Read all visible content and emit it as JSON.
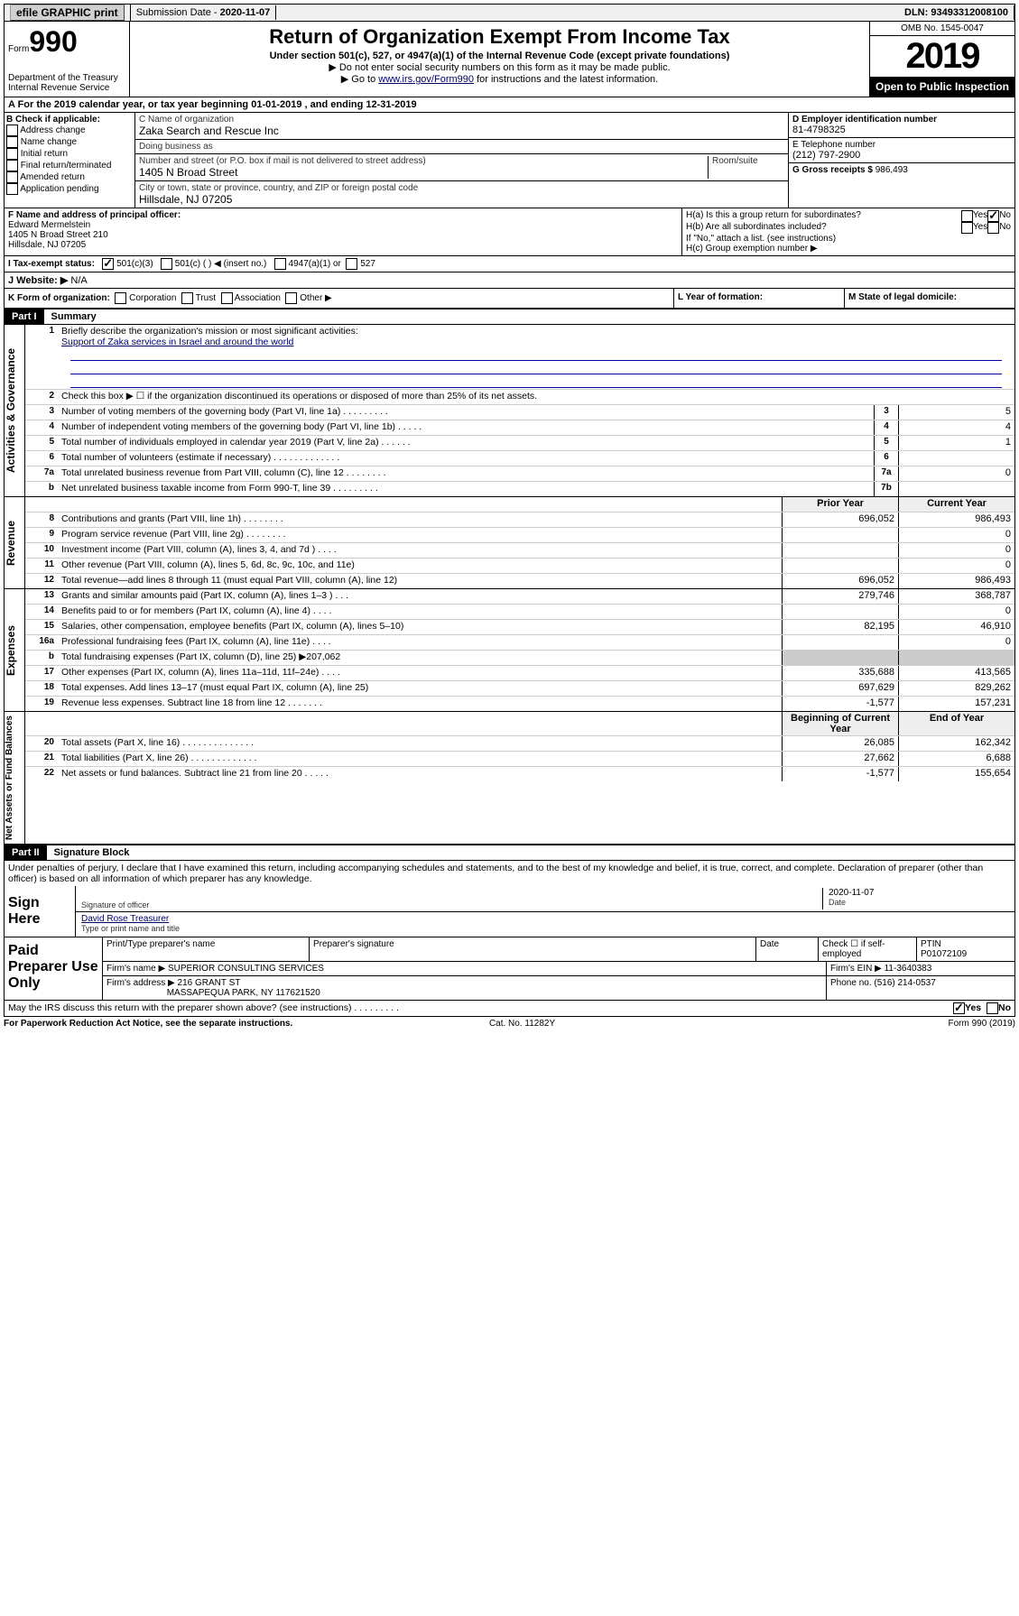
{
  "topbar": {
    "efile": "efile GRAPHIC print",
    "subdate_label": "Submission Date - ",
    "subdate": "2020-11-07",
    "dln_label": "DLN: ",
    "dln": "93493312008100"
  },
  "header": {
    "form_label": "Form",
    "form_num": "990",
    "dept1": "Department of the Treasury",
    "dept2": "Internal Revenue Service",
    "title": "Return of Organization Exempt From Income Tax",
    "sub": "Under section 501(c), 527, or 4947(a)(1) of the Internal Revenue Code (except private foundations)",
    "note1": "▶ Do not enter social security numbers on this form as it may be made public.",
    "note2a": "▶ Go to ",
    "note2link": "www.irs.gov/Form990",
    "note2b": " for instructions and the latest information.",
    "omb": "OMB No. 1545-0047",
    "year": "2019",
    "open": "Open to Public Inspection"
  },
  "period": {
    "text_a": "A For the 2019 calendar year, or tax year beginning ",
    "begin": "01-01-2019",
    "text_b": " , and ending ",
    "end": "12-31-2019"
  },
  "colB": {
    "title": "B Check if applicable:",
    "opts": [
      "Address change",
      "Name change",
      "Initial return",
      "Final return/terminated",
      "Amended return",
      "Application pending"
    ]
  },
  "colC": {
    "name_label": "C Name of organization",
    "name": "Zaka Search and Rescue Inc",
    "dba_label": "Doing business as",
    "dba": "",
    "addr_label": "Number and street (or P.O. box if mail is not delivered to street address)",
    "room_label": "Room/suite",
    "addr": "1405 N Broad Street",
    "city_label": "City or town, state or province, country, and ZIP or foreign postal code",
    "city": "Hillsdale, NJ  07205"
  },
  "colD": {
    "ein_label": "D Employer identification number",
    "ein": "81-4798325",
    "tel_label": "E Telephone number",
    "tel": "(212) 797-2900",
    "gross_label": "G Gross receipts $ ",
    "gross": "986,493"
  },
  "rowF": {
    "f_label": "F  Name and address of principal officer:",
    "f_name": "Edward Mermelstein",
    "f_addr1": "1405 N Broad Street 210",
    "f_addr2": "Hillsdale, NJ  07205",
    "ha": "H(a)  Is this a group return for subordinates?",
    "hb": "H(b)  Are all subordinates included?",
    "hb_note": "If \"No,\" attach a list. (see instructions)",
    "hc": "H(c)  Group exemption number ▶",
    "yes": "Yes",
    "no": "No"
  },
  "rowI": {
    "label": "I    Tax-exempt status:",
    "opt1": "501(c)(3)",
    "opt2": "501(c) (   ) ◀ (insert no.)",
    "opt3": "4947(a)(1) or",
    "opt4": "527"
  },
  "rowJ": {
    "label": "J   Website: ▶",
    "value": "N/A"
  },
  "rowK": {
    "k": "K Form of organization:",
    "kopts": [
      "Corporation",
      "Trust",
      "Association",
      "Other ▶"
    ],
    "l": "L Year of formation:",
    "l_val": "",
    "m": "M State of legal domicile:",
    "m_val": ""
  },
  "part1": {
    "label": "Part I",
    "title": "Summary",
    "sections": {
      "governance": {
        "tab": "Activities & Governance",
        "line1_label": "Briefly describe the organization's mission or most significant activities:",
        "line1_value": "Support of Zaka services in Israel and around the world",
        "line2": "Check this box ▶ ☐  if the organization discontinued its operations or disposed of more than 25% of its net assets.",
        "rows": [
          {
            "n": "3",
            "t": "Number of voting members of the governing body (Part VI, line 1a)   .    .    .    .    .    .    .    .    .",
            "box": "3",
            "v": "5"
          },
          {
            "n": "4",
            "t": "Number of independent voting members of the governing body (Part VI, line 1b)    .    .    .    .    .",
            "box": "4",
            "v": "4"
          },
          {
            "n": "5",
            "t": "Total number of individuals employed in calendar year 2019 (Part V, line 2a)    .    .    .    .    .    .",
            "box": "5",
            "v": "1"
          },
          {
            "n": "6",
            "t": "Total number of volunteers (estimate if necessary)    .    .    .    .    .    .    .    .    .    .    .    .    .",
            "box": "6",
            "v": ""
          },
          {
            "n": "7a",
            "t": "Total unrelated business revenue from Part VIII, column (C), line 12    .    .    .    .    .    .    .    .",
            "box": "7a",
            "v": "0"
          },
          {
            "n": "b",
            "t": "Net unrelated business taxable income from Form 990-T, line 39    .    .    .    .    .    .    .    .    .",
            "box": "7b",
            "v": ""
          }
        ]
      },
      "revenue": {
        "tab": "Revenue",
        "hdr_prior": "Prior Year",
        "hdr_curr": "Current Year",
        "rows": [
          {
            "n": "8",
            "t": "Contributions and grants (Part VIII, line 1h)    .    .    .    .    .    .    .    .",
            "p": "696,052",
            "c": "986,493"
          },
          {
            "n": "9",
            "t": "Program service revenue (Part VIII, line 2g)    .    .    .    .    .    .    .    .",
            "p": "",
            "c": "0"
          },
          {
            "n": "10",
            "t": "Investment income (Part VIII, column (A), lines 3, 4, and 7d )    .    .    .    .",
            "p": "",
            "c": "0"
          },
          {
            "n": "11",
            "t": "Other revenue (Part VIII, column (A), lines 5, 6d, 8c, 9c, 10c, and 11e)",
            "p": "",
            "c": "0"
          },
          {
            "n": "12",
            "t": "Total revenue—add lines 8 through 11 (must equal Part VIII, column (A), line 12)",
            "p": "696,052",
            "c": "986,493"
          }
        ]
      },
      "expenses": {
        "tab": "Expenses",
        "rows": [
          {
            "n": "13",
            "t": "Grants and similar amounts paid (Part IX, column (A), lines 1–3 )    .    .    .",
            "p": "279,746",
            "c": "368,787"
          },
          {
            "n": "14",
            "t": "Benefits paid to or for members (Part IX, column (A), line 4)    .    .    .    .",
            "p": "",
            "c": "0"
          },
          {
            "n": "15",
            "t": "Salaries, other compensation, employee benefits (Part IX, column (A), lines 5–10)",
            "p": "82,195",
            "c": "46,910"
          },
          {
            "n": "16a",
            "t": "Professional fundraising fees (Part IX, column (A), line 11e)    .    .    .    .",
            "p": "",
            "c": "0"
          },
          {
            "n": "b",
            "t": "Total fundraising expenses (Part IX, column (D), line 25) ▶207,062",
            "p": "gray",
            "c": "gray"
          },
          {
            "n": "17",
            "t": "Other expenses (Part IX, column (A), lines 11a–11d, 11f–24e)    .    .    .    .",
            "p": "335,688",
            "c": "413,565"
          },
          {
            "n": "18",
            "t": "Total expenses. Add lines 13–17 (must equal Part IX, column (A), line 25)",
            "p": "697,629",
            "c": "829,262"
          },
          {
            "n": "19",
            "t": "Revenue less expenses. Subtract line 18 from line 12    .    .    .    .    .    .    .",
            "p": "-1,577",
            "c": "157,231"
          }
        ]
      },
      "netassets": {
        "tab": "Net Assets or Fund Balances",
        "hdr_prior": "Beginning of Current Year",
        "hdr_curr": "End of Year",
        "rows": [
          {
            "n": "20",
            "t": "Total assets (Part X, line 16)    .    .    .    .    .    .    .    .    .    .    .    .    .    .",
            "p": "26,085",
            "c": "162,342"
          },
          {
            "n": "21",
            "t": "Total liabilities (Part X, line 26)    .    .    .    .    .    .    .    .    .    .    .    .    .",
            "p": "27,662",
            "c": "6,688"
          },
          {
            "n": "22",
            "t": "Net assets or fund balances. Subtract line 21 from line 20    .    .    .    .    .",
            "p": "-1,577",
            "c": "155,654"
          }
        ]
      }
    }
  },
  "part2": {
    "label": "Part II",
    "title": "Signature Block",
    "statement": "Under penalties of perjury, I declare that I have examined this return, including accompanying schedules and statements, and to the best of my knowledge and belief, it is true, correct, and complete. Declaration of preparer (other than officer) is based on all information of which preparer has any knowledge.",
    "sign_here": "Sign Here",
    "sig_officer": "Signature of officer",
    "sig_date": "2020-11-07",
    "sig_date_label": "Date",
    "sig_name": "David Rose  Treasurer",
    "sig_name_label": "Type or print name and title",
    "paid": "Paid Preparer Use Only",
    "prep_name_label": "Print/Type preparer's name",
    "prep_sig_label": "Preparer's signature",
    "date_label": "Date",
    "self_emp": "Check ☐ if self-employed",
    "ptin_label": "PTIN",
    "ptin": "P01072109",
    "firm_name_label": "Firm's name      ▶ ",
    "firm_name": "SUPERIOR CONSULTING SERVICES",
    "firm_ein_label": "Firm's EIN ▶ ",
    "firm_ein": "11-3640383",
    "firm_addr_label": "Firm's address  ▶ ",
    "firm_addr1": "216 GRANT ST",
    "firm_addr2": "MASSAPEQUA PARK, NY  117621520",
    "firm_phone_label": "Phone no. ",
    "firm_phone": "(516) 214-0537",
    "discuss": "May the IRS discuss this return with the preparer shown above? (see instructions)    .    .    .    .    .    .    .    .    .",
    "yes": "Yes",
    "no": "No"
  },
  "footer": {
    "left": "For Paperwork Reduction Act Notice, see the separate instructions.",
    "mid": "Cat. No. 11282Y",
    "right": "Form 990 (2019)"
  }
}
